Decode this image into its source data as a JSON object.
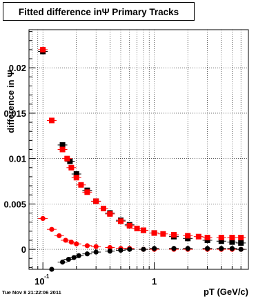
{
  "title": "Fitted difference inΨ   Primary Tracks",
  "timestamp": "Tue Nov  8 21:22:06 2011",
  "chart_data": {
    "type": "scatter",
    "title": "Fitted difference inΨ   Primary Tracks",
    "xlabel": "pT (GeV/c)",
    "ylabel": "difference in Ψ",
    "x_scale": "log",
    "xlim": [
      0.075,
      7.0
    ],
    "ylim": [
      -0.0022,
      0.0242
    ],
    "grid": true,
    "x_ticks": [
      {
        "value": 0.1,
        "base": "10",
        "exp": "-1"
      },
      {
        "value": 1,
        "label": "1"
      }
    ],
    "y_ticks": [
      {
        "value": 0,
        "label": "0"
      },
      {
        "value": 0.005,
        "label": "0.005"
      },
      {
        "value": 0.01,
        "label": "0.01"
      },
      {
        "value": 0.015,
        "label": "0.015"
      },
      {
        "value": 0.02,
        "label": "0.02"
      }
    ],
    "series": [
      {
        "color": "#000000",
        "marker": "square",
        "x": [
          0.1,
          0.15,
          0.175,
          0.2,
          0.25,
          0.3,
          0.4,
          0.5,
          0.6,
          0.8,
          1.0,
          1.5,
          2.0,
          3.0,
          4.0,
          5.0,
          6.0
        ],
        "y": [
          0.0218,
          0.0115,
          0.0097,
          0.0083,
          0.0065,
          0.0053,
          0.004,
          0.0032,
          0.0027,
          0.0021,
          0.0018,
          0.0014,
          0.0012,
          0.001,
          0.0009,
          0.0008,
          0.0007
        ]
      },
      {
        "color": "#ff0000",
        "marker": "square",
        "x": [
          0.1,
          0.12,
          0.15,
          0.165,
          0.18,
          0.2,
          0.22,
          0.25,
          0.3,
          0.35,
          0.4,
          0.5,
          0.6,
          0.7,
          0.8,
          1.0,
          1.2,
          1.5,
          2.0,
          2.5,
          3.0,
          4.0,
          5.0,
          6.0
        ],
        "y": [
          0.022,
          0.0142,
          0.011,
          0.01,
          0.009,
          0.0079,
          0.0071,
          0.0063,
          0.0053,
          0.0045,
          0.0039,
          0.0031,
          0.0026,
          0.0023,
          0.0021,
          0.0018,
          0.0017,
          0.0016,
          0.0015,
          0.0014,
          0.0013,
          0.0013,
          0.0013,
          0.0013
        ]
      },
      {
        "color": "#ff0000",
        "marker": "circle",
        "x": [
          0.1,
          0.12,
          0.14,
          0.16,
          0.18,
          0.2,
          0.25,
          0.3,
          0.4,
          0.5,
          0.6,
          0.8,
          1.0,
          1.5,
          2.0,
          3.0,
          4.0,
          5.0,
          6.0
        ],
        "y": [
          0.0034,
          0.0022,
          0.0015,
          0.001,
          0.0008,
          0.0006,
          0.0004,
          0.0003,
          0.0002,
          0.0001,
          0.0001,
          0.0,
          0.0,
          0.0,
          0.0,
          0.0,
          0.0,
          0.0,
          0.0
        ]
      },
      {
        "color": "#000000",
        "marker": "circle",
        "x": [
          0.12,
          0.15,
          0.17,
          0.19,
          0.21,
          0.25,
          0.3,
          0.4,
          0.5,
          0.6,
          0.8,
          1.0,
          1.5,
          2.0,
          3.0,
          4.0,
          5.0,
          6.0
        ],
        "y": [
          -0.0022,
          -0.0014,
          -0.0011,
          -0.0009,
          -0.0007,
          -0.0005,
          -0.0003,
          -0.0002,
          -0.0001,
          0.0,
          0.0,
          0.0001,
          0.0001,
          0.0001,
          0.0001,
          0.0001,
          0.0001,
          0.0
        ]
      }
    ]
  }
}
